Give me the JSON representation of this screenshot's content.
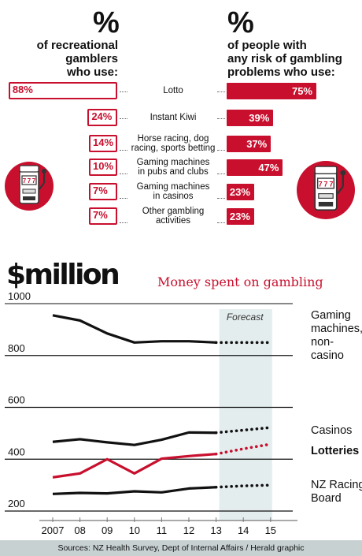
{
  "header": {
    "left_symbol": "%",
    "left_heading_lines": [
      "of recreational",
      "gamblers",
      "who use:"
    ],
    "right_symbol": "%",
    "right_heading_lines": [
      "of people with",
      "any risk of gambling",
      "problems who use:"
    ]
  },
  "usage": {
    "rows": [
      {
        "category_lines": [
          "Lotto"
        ],
        "recreational": 88,
        "recreational_label": "88%",
        "at_risk": 75,
        "at_risk_label": "75%"
      },
      {
        "category_lines": [
          "Instant Kiwi"
        ],
        "recreational": 24,
        "recreational_label": "24%",
        "at_risk": 39,
        "at_risk_label": "39%"
      },
      {
        "category_lines": [
          "Horse racing, dog",
          "racing, sports betting"
        ],
        "recreational": 14,
        "recreational_label": "14%",
        "at_risk": 37,
        "at_risk_label": "37%"
      },
      {
        "category_lines": [
          "Gaming machines",
          "in pubs and clubs"
        ],
        "recreational": 10,
        "recreational_label": "10%",
        "at_risk": 47,
        "at_risk_label": "47%"
      },
      {
        "category_lines": [
          "Gaming machines",
          "in casinos"
        ],
        "recreational": 7,
        "recreational_label": "7%",
        "at_risk": 23,
        "at_risk_label": "23%"
      },
      {
        "category_lines": [
          "Other gambling",
          "activities"
        ],
        "recreational": 7,
        "recreational_label": "7%",
        "at_risk": 23,
        "at_risk_label": "23%"
      }
    ]
  },
  "section2": {
    "title": "$million",
    "subtitle": "Money spent on gambling"
  },
  "colors": {
    "accent_red": "#c8102e",
    "forecast_band": "#e4edee",
    "source_band": "#c7d1d2",
    "line_dark": "#111111"
  },
  "icons": [
    "slot-machine-icon",
    "slot-machine-icon"
  ],
  "chart_data": {
    "type": "line",
    "title": "Money spent on gambling",
    "title_prefix": "$million",
    "x": [
      "2007",
      "08",
      "09",
      "10",
      "11",
      "12",
      "13",
      "14",
      "15"
    ],
    "ylim": [
      200,
      1000
    ],
    "yticks": [
      200,
      400,
      600,
      800,
      1000
    ],
    "grid": true,
    "forecast_label": "Forecast",
    "forecast_from": "13",
    "series": [
      {
        "name_lines": [
          "Gaming",
          "machines,",
          "non-",
          "casino"
        ],
        "color": "#111111",
        "values": [
          955,
          935,
          885,
          850,
          855,
          855,
          850,
          850,
          850
        ]
      },
      {
        "name_lines": [
          "Casinos"
        ],
        "color": "#111111",
        "values": [
          467,
          477,
          465,
          455,
          475,
          503,
          502,
          512,
          522
        ]
      },
      {
        "name_lines": [
          "Lotteries"
        ],
        "color": "#c8102e",
        "bold": true,
        "values": [
          330,
          345,
          400,
          345,
          402,
          412,
          420,
          440,
          458
        ]
      },
      {
        "name_lines": [
          "NZ Racing",
          "Board"
        ],
        "color": "#111111",
        "values": [
          266,
          270,
          268,
          276,
          272,
          287,
          292,
          297,
          300
        ]
      }
    ]
  },
  "footer": {
    "source": "Sources: NZ Health Survey, Dept of Internal Affairs / Herald graphic"
  }
}
